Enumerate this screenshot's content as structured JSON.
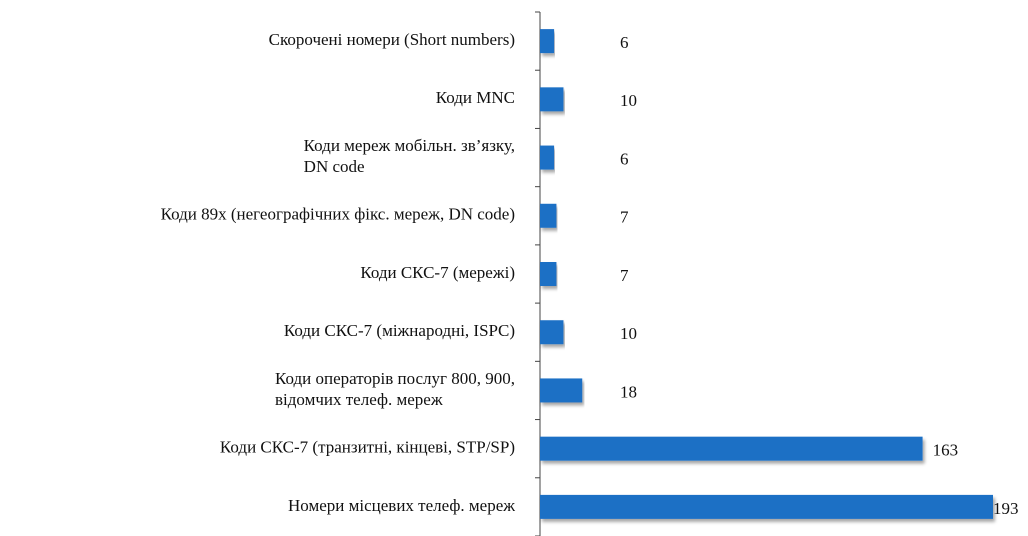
{
  "chart_data": {
    "type": "bar",
    "orientation": "horizontal",
    "color": "#1f6fc5",
    "categories": [
      [
        "Скорочені номери (Short numbers)"
      ],
      [
        "Коди MNC"
      ],
      [
        "Коди мереж мобільн. зв’язку,",
        "DN code"
      ],
      [
        "Коди 89х (негеографічних фікс. мереж, DN code)"
      ],
      [
        "Коди СКС-7 (мережі)"
      ],
      [
        "Коди СКС-7 (міжнародні, ISPC)"
      ],
      [
        "Коди операторів послуг 800, 900,",
        "відомчих телеф. мереж"
      ],
      [
        "Коди СКС-7 (транзитні, кінцеві, STP/SP)"
      ],
      [
        "Номери місцевих   телеф. мереж"
      ]
    ],
    "values": [
      6,
      10,
      6,
      7,
      7,
      10,
      18,
      163,
      193
    ]
  }
}
